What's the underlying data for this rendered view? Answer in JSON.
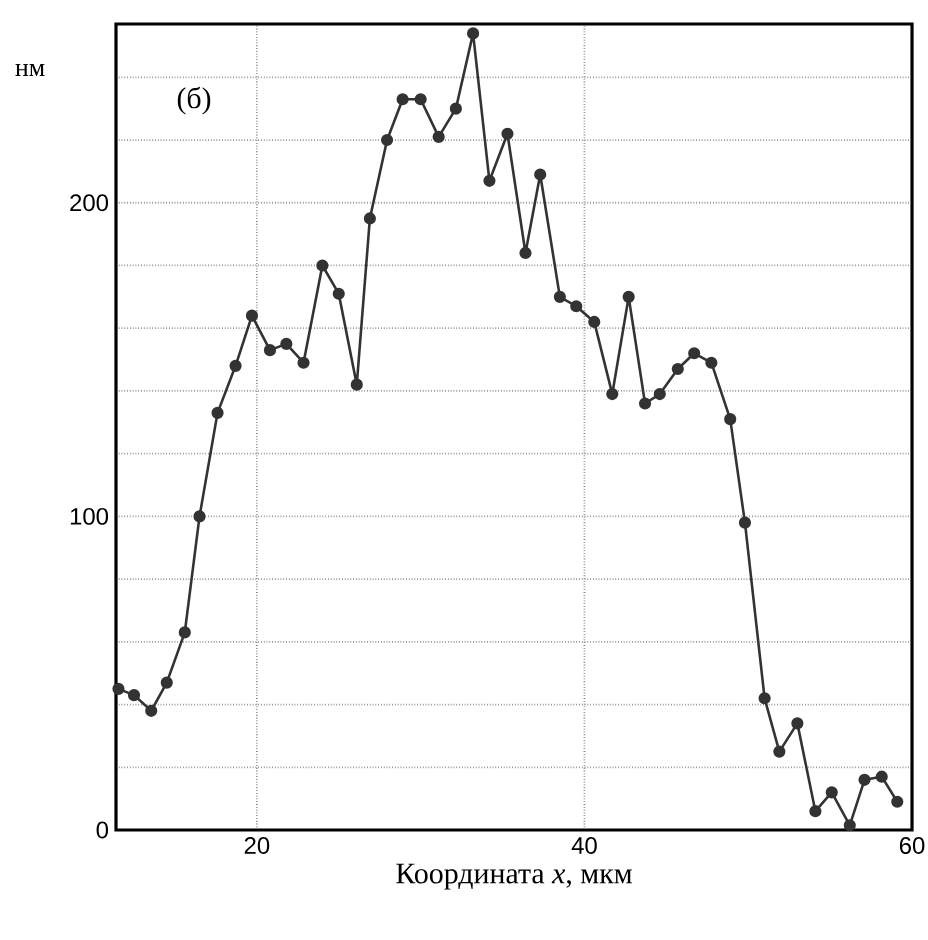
{
  "chart_data": {
    "type": "line",
    "ylabel": "нм",
    "xlabel": "Координата *x*, мкм",
    "annotations": [
      "(б)"
    ],
    "x": [
      11.55,
      12.5,
      13.55,
      14.5,
      15.6,
      16.5,
      17.6,
      18.7,
      19.7,
      20.8,
      21.8,
      22.85,
      24.0,
      25.0,
      26.1,
      26.9,
      27.95,
      28.9,
      30.0,
      31.1,
      32.15,
      33.2,
      34.2,
      35.3,
      36.4,
      37.3,
      38.5,
      39.5,
      40.6,
      41.7,
      42.7,
      43.7,
      44.6,
      45.7,
      46.7,
      47.75,
      48.9,
      49.8,
      51.0,
      51.9,
      53.0,
      54.1,
      55.1,
      56.2,
      57.1,
      58.15,
      59.1
    ],
    "series": [
      {
        "color": "#333333",
        "values": [
          45,
          43,
          38,
          47,
          63,
          100,
          133,
          148,
          164,
          153,
          155,
          149,
          180,
          171,
          142,
          195,
          220,
          233,
          233,
          221,
          230,
          254,
          207,
          222,
          184,
          209,
          170,
          167,
          162,
          139,
          170,
          136,
          139,
          147,
          152,
          149,
          131,
          98,
          42,
          25,
          34,
          6,
          12,
          1.5,
          16,
          17,
          9
        ]
      }
    ],
    "xlim": [
      11.4,
      60
    ],
    "xticks": [
      20,
      40,
      60
    ],
    "ylim": [
      0,
      257
    ],
    "yticks": [
      0,
      {
        "value": 20,
        "label": null
      },
      {
        "value": 40,
        "label": null
      },
      {
        "value": 60,
        "label": null
      },
      {
        "value": 80,
        "label": null
      },
      100,
      {
        "value": 120,
        "label": null
      },
      {
        "value": 140,
        "label": null
      },
      {
        "value": 160,
        "label": null
      },
      {
        "value": 180,
        "label": null
      },
      200,
      {
        "value": 220,
        "label": null
      },
      {
        "value": 240,
        "label": null
      }
    ],
    "grid": true,
    "marker": "circle",
    "line_style": "solid"
  }
}
